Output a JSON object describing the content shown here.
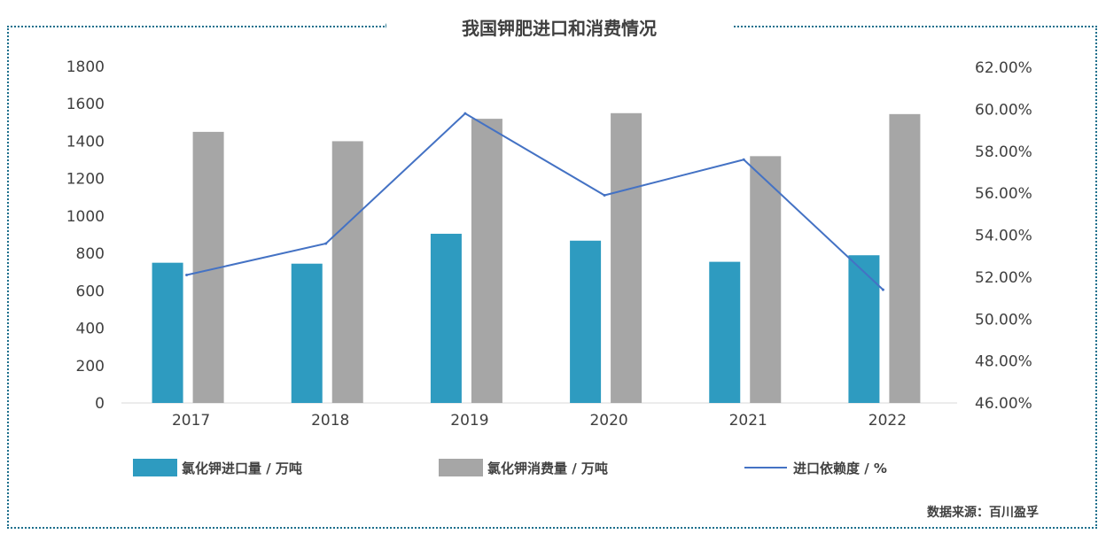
{
  "chart_data": {
    "type": "bar",
    "title": "我国钾肥进口和消费情况",
    "categories": [
      "2017",
      "2018",
      "2019",
      "2020",
      "2021",
      "2022"
    ],
    "series": [
      {
        "name": "氯化钾进口量 / 万吨",
        "type": "bar",
        "axis": "left",
        "color": "#2e9bc0",
        "values": [
          750,
          745,
          905,
          868,
          755,
          790
        ]
      },
      {
        "name": "氯化钾消费量 / 万吨",
        "type": "bar",
        "axis": "left",
        "color": "#a6a6a6",
        "values": [
          1450,
          1400,
          1520,
          1550,
          1320,
          1545
        ]
      },
      {
        "name": "进口依赖度 / %",
        "type": "line",
        "axis": "right",
        "color": "#4472c4",
        "values": [
          52.1,
          53.6,
          59.8,
          55.9,
          57.6,
          51.4
        ]
      }
    ],
    "left_axis": {
      "ylim": [
        0,
        1800
      ],
      "ticks": [
        "0",
        "200",
        "400",
        "600",
        "800",
        "1000",
        "1200",
        "1400",
        "1600",
        "1800"
      ]
    },
    "right_axis": {
      "ylim": [
        46,
        62
      ],
      "ticks": [
        "46.00%",
        "48.00%",
        "50.00%",
        "52.00%",
        "54.00%",
        "56.00%",
        "58.00%",
        "60.00%",
        "62.00%"
      ]
    },
    "legend_position": "bottom",
    "grid": false
  },
  "source": "数据来源：百川盈孚"
}
